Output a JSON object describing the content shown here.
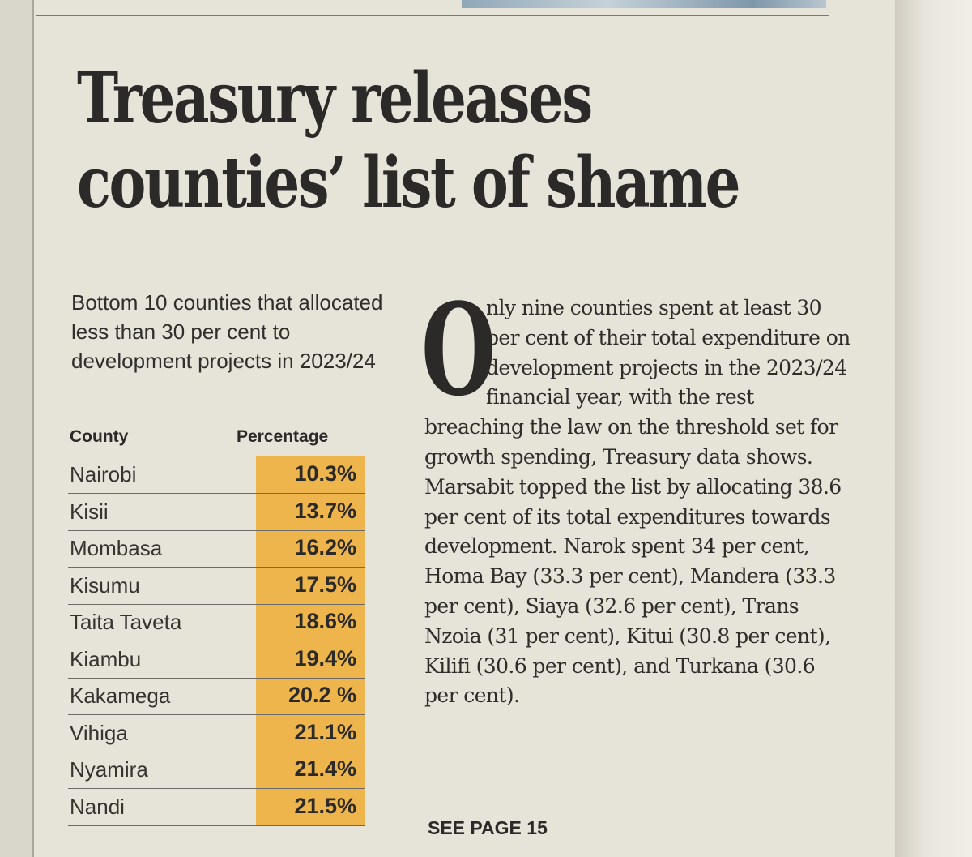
{
  "article": {
    "headline_line1": "Treasury releases",
    "headline_line2": "counties’ list of shame",
    "intro": "Bottom 10 counties that allocated less than 30 per cent to development projects in 2023/24",
    "table": {
      "headers": [
        "County",
        "Percentage"
      ],
      "rows": [
        {
          "county": "Nairobi",
          "percentage": "10.3%"
        },
        {
          "county": "Kisii",
          "percentage": "13.7%"
        },
        {
          "county": "Mombasa",
          "percentage": "16.2%"
        },
        {
          "county": "Kisumu",
          "percentage": "17.5%"
        },
        {
          "county": "Taita Taveta",
          "percentage": "18.6%"
        },
        {
          "county": "Kiambu",
          "percentage": "19.4%"
        },
        {
          "county": "Kakamega",
          "percentage": "20.2 %"
        },
        {
          "county": "Vihiga",
          "percentage": "21.1%"
        },
        {
          "county": "Nyamira",
          "percentage": "21.4%"
        },
        {
          "county": "Nandi",
          "percentage": "21.5%"
        }
      ]
    },
    "drop_cap": "O",
    "body": "nly nine counties spent at least 30 per cent of their total expenditure on development projects in the 2023/24 financial year, with the rest breaching the law on the threshold set for growth spending, Treasury data shows. Marsabit topped the list by allocating 38.6 per cent of its total expenditures towards development. Narok spent 34 per cent, Homa Bay (33.3 per cent), Mandera (33.3 per cent), Siaya (32.6 per cent), Trans Nzoia (31 per cent), Kitui (30.8 per cent), Kilifi (30.6 per cent), and Turkana (30.6 per cent).",
    "see_page": "SEE PAGE 15"
  },
  "colors": {
    "paper": "#e6e3d9",
    "highlight": "#eeb54d",
    "ink": "#2b2a28"
  }
}
